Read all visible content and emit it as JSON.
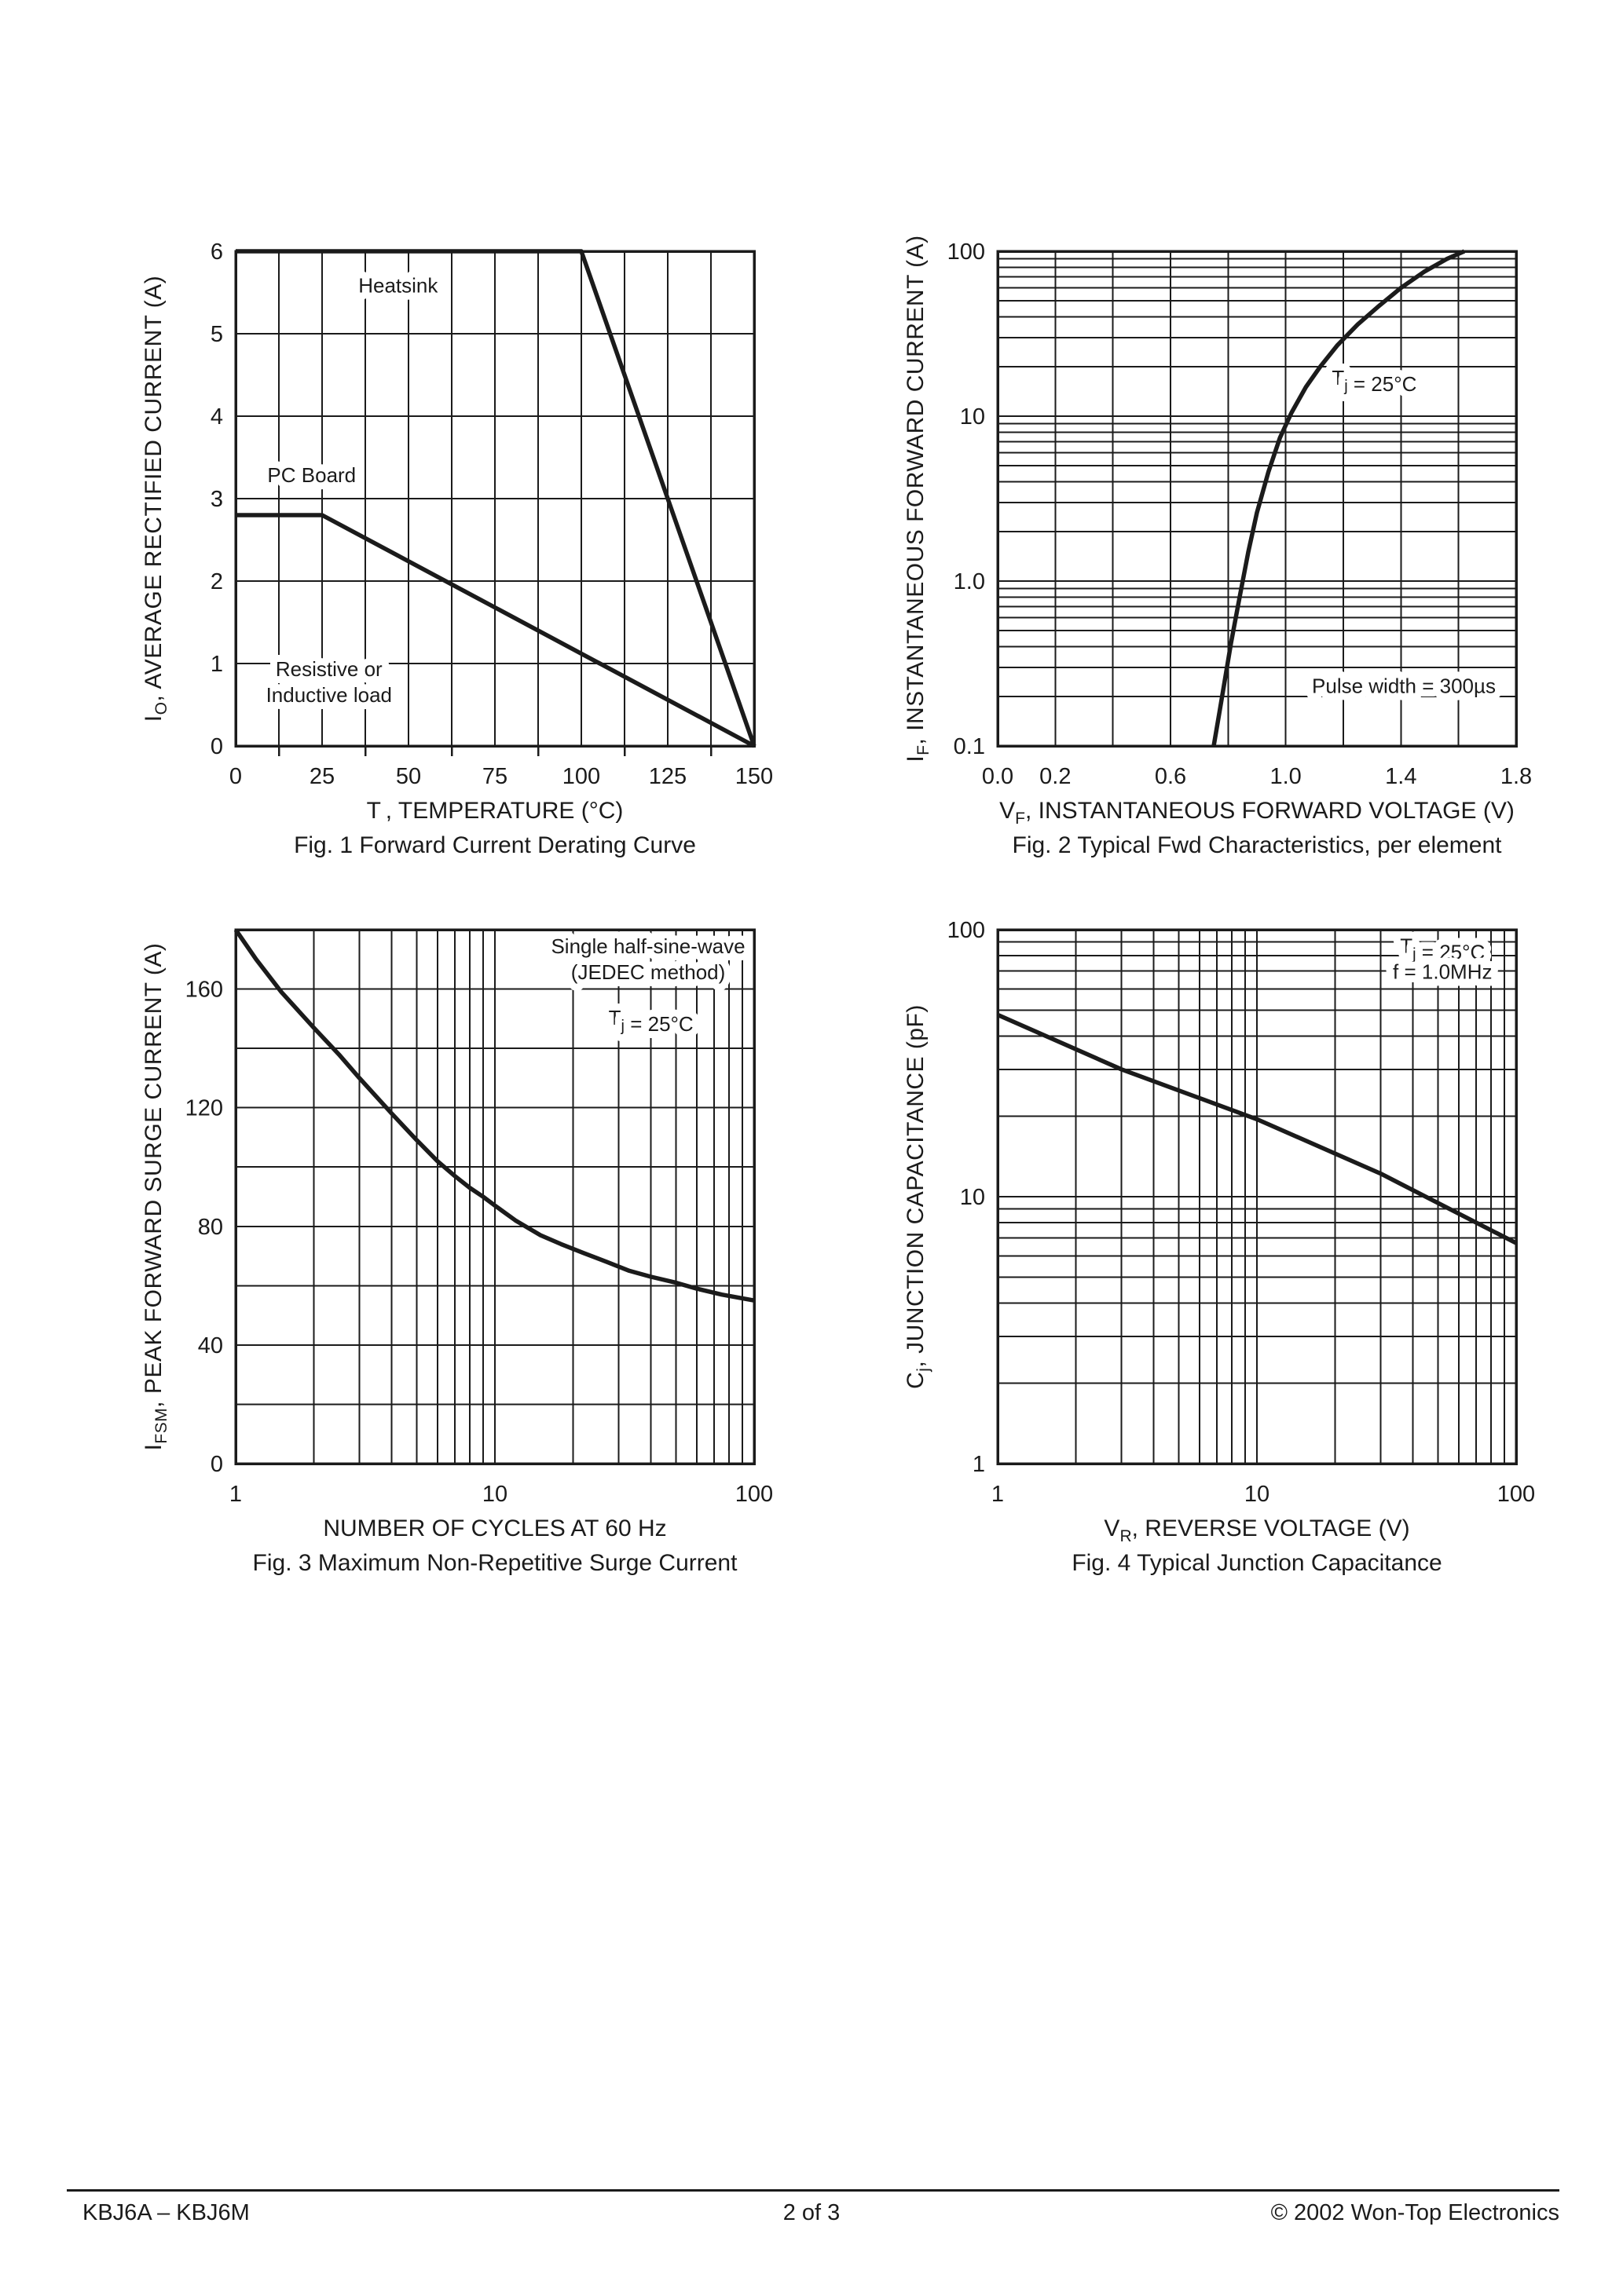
{
  "colors": {
    "ink": "#1b1b1b",
    "background": "#ffffff"
  },
  "footer": {
    "left": "KBJ6A – KBJ6M",
    "center": "2 of 3",
    "right": "© 2002 Won-Top Electronics"
  },
  "chart_data": [
    {
      "id": "fig1",
      "type": "line",
      "caption": "Fig. 1  Forward Current Derating Curve",
      "xlabel": {
        "pre": "T",
        "sub": "  ",
        "post": ", TEMPERATURE (°C)"
      },
      "ylabel": {
        "pre": "I",
        "sub": "O",
        "post": ", AVERAGE RECTIFIED CURRENT (A)"
      },
      "x_axis": {
        "scale": "linear",
        "min": 0,
        "max": 150,
        "grid_step": 12.5,
        "outward_minor_ticks": true,
        "ticks": [
          {
            "v": 0,
            "label": "0"
          },
          {
            "v": 25,
            "label": "25"
          },
          {
            "v": 50,
            "label": "50"
          },
          {
            "v": 75,
            "label": "75"
          },
          {
            "v": 100,
            "label": "100"
          },
          {
            "v": 125,
            "label": "125"
          },
          {
            "v": 150,
            "label": "150"
          }
        ]
      },
      "y_axis": {
        "scale": "linear",
        "min": 0,
        "max": 6,
        "grid_step": 1,
        "ticks": [
          {
            "v": 0,
            "label": "0"
          },
          {
            "v": 1,
            "label": "1"
          },
          {
            "v": 2,
            "label": "2"
          },
          {
            "v": 3,
            "label": "3"
          },
          {
            "v": 4,
            "label": "4"
          },
          {
            "v": 5,
            "label": "5"
          },
          {
            "v": 6,
            "label": "6"
          }
        ]
      },
      "series": [
        {
          "name": "Heatsink",
          "points": [
            [
              0,
              6
            ],
            [
              100,
              6
            ],
            [
              150,
              0
            ]
          ]
        },
        {
          "name": "PC Board",
          "points": [
            [
              0,
              2.8
            ],
            [
              25,
              2.8
            ],
            [
              150,
              0
            ]
          ]
        }
      ],
      "annotations": [
        {
          "x": 47,
          "y": 5.5,
          "anchor": "middle",
          "lines": [
            [
              {
                "t": "Heatsink"
              }
            ]
          ]
        },
        {
          "x": 22,
          "y": 3.2,
          "anchor": "middle",
          "lines": [
            [
              {
                "t": "PC Board"
              }
            ]
          ]
        },
        {
          "x": 27,
          "y": 0.85,
          "anchor": "middle",
          "lines": [
            [
              {
                "t": "Resistive or"
              }
            ],
            [
              {
                "t": "Inductive load"
              }
            ]
          ]
        }
      ]
    },
    {
      "id": "fig2",
      "type": "line",
      "caption": "Fig. 2  Typical Fwd Characteristics, per element",
      "xlabel": {
        "pre": "V",
        "sub": "F",
        "post": ", INSTANTANEOUS FORWARD VOLTAGE (V)"
      },
      "ylabel": {
        "pre": "I",
        "sub": "F",
        "post": ", INSTANTANEOUS FORWARD CURRENT (A)"
      },
      "x_axis": {
        "scale": "linear",
        "min": 0,
        "max": 1.8,
        "grid_step": 0.2,
        "ticks": [
          {
            "v": 0,
            "label": "0.0"
          },
          {
            "v": 0.2,
            "label": "0.2"
          },
          {
            "v": 0.6,
            "label": "0.6"
          },
          {
            "v": 1.0,
            "label": "1.0"
          },
          {
            "v": 1.4,
            "label": "1.4"
          },
          {
            "v": 1.8,
            "label": "1.8"
          }
        ]
      },
      "y_axis": {
        "scale": "log",
        "min": 0.1,
        "max": 100,
        "ticks": [
          {
            "v": 0.1,
            "label": "0.1"
          },
          {
            "v": 1,
            "label": "1.0"
          },
          {
            "v": 10,
            "label": "10"
          },
          {
            "v": 100,
            "label": "100"
          }
        ]
      },
      "series": [
        {
          "name": "Tj = 25°C, Pulse width = 300µs",
          "points": [
            [
              0.75,
              0.1
            ],
            [
              0.77,
              0.16
            ],
            [
              0.79,
              0.26
            ],
            [
              0.81,
              0.42
            ],
            [
              0.84,
              0.8
            ],
            [
              0.87,
              1.5
            ],
            [
              0.9,
              2.6
            ],
            [
              0.94,
              4.6
            ],
            [
              0.98,
              7.4
            ],
            [
              1.02,
              10.5
            ],
            [
              1.07,
              15
            ],
            [
              1.12,
              20
            ],
            [
              1.18,
              27
            ],
            [
              1.25,
              36
            ],
            [
              1.32,
              46
            ],
            [
              1.4,
              60
            ],
            [
              1.48,
              75
            ],
            [
              1.56,
              90
            ],
            [
              1.62,
              100
            ]
          ]
        }
      ],
      "annotations": [
        {
          "x": 1.16,
          "y": 15.5,
          "anchor": "start",
          "lines": [
            [
              {
                "t": "T"
              },
              {
                "t": "j",
                "sub": true
              },
              {
                "t": " = 25°C"
              }
            ]
          ]
        },
        {
          "x": 1.41,
          "y": 0.21,
          "anchor": "middle",
          "lines": [
            [
              {
                "t": "Pulse width = 300µs"
              }
            ]
          ]
        }
      ]
    },
    {
      "id": "fig3",
      "type": "line",
      "caption": "Fig. 3  Maximum Non-Repetitive Surge Current",
      "xlabel": {
        "pre": "",
        "sub": "",
        "post": "NUMBER OF CYCLES AT 60 Hz"
      },
      "ylabel": {
        "pre": "I",
        "sub": "FSM",
        "post": ", PEAK FORWARD SURGE CURRENT (A)"
      },
      "x_axis": {
        "scale": "log",
        "min": 1,
        "max": 100,
        "ticks": [
          {
            "v": 1,
            "label": "1"
          },
          {
            "v": 10,
            "label": "10"
          },
          {
            "v": 100,
            "label": "100"
          }
        ]
      },
      "y_axis": {
        "scale": "linear",
        "min": 0,
        "max": 180,
        "grid_step": 20,
        "ticks": [
          {
            "v": 0,
            "label": "0"
          },
          {
            "v": 40,
            "label": "40"
          },
          {
            "v": 80,
            "label": "80"
          },
          {
            "v": 120,
            "label": "120"
          },
          {
            "v": 160,
            "label": "160"
          }
        ]
      },
      "series": [
        {
          "name": "Single half-sine-wave (JEDEC method), Tj = 25°C",
          "points": [
            [
              1,
              180
            ],
            [
              1.2,
              170
            ],
            [
              1.5,
              159
            ],
            [
              2,
              147
            ],
            [
              2.5,
              138
            ],
            [
              3,
              130
            ],
            [
              4,
              118
            ],
            [
              5,
              109
            ],
            [
              6,
              102
            ],
            [
              7,
              97
            ],
            [
              8,
              93
            ],
            [
              9,
              90
            ],
            [
              10,
              87
            ],
            [
              12,
              82
            ],
            [
              15,
              77
            ],
            [
              18,
              74
            ],
            [
              22,
              71
            ],
            [
              27,
              68
            ],
            [
              33,
              65
            ],
            [
              40,
              63
            ],
            [
              50,
              61
            ],
            [
              60,
              59
            ],
            [
              75,
              57
            ],
            [
              100,
              55
            ]
          ]
        }
      ],
      "annotations": [
        {
          "x": 39,
          "y": 172,
          "anchor": "middle",
          "lines": [
            [
              {
                "t": "Single half-sine-wave"
              }
            ],
            [
              {
                "t": "(JEDEC method)"
              }
            ]
          ]
        },
        {
          "x": 40,
          "y": 148,
          "anchor": "middle",
          "lines": [
            [
              {
                "t": "T"
              },
              {
                "t": "j",
                "sub": true
              },
              {
                "t": " = 25°C"
              }
            ]
          ]
        }
      ]
    },
    {
      "id": "fig4",
      "type": "line",
      "caption": "Fig. 4  Typical Junction Capacitance",
      "xlabel": {
        "pre": "V",
        "sub": "R",
        "post": ", REVERSE VOLTAGE (V)"
      },
      "ylabel": {
        "pre": "C",
        "sub": "j",
        "post": ", JUNCTION CAPACITANCE (pF)"
      },
      "x_axis": {
        "scale": "log",
        "min": 1,
        "max": 100,
        "ticks": [
          {
            "v": 1,
            "label": "1"
          },
          {
            "v": 10,
            "label": "10"
          },
          {
            "v": 100,
            "label": "100"
          }
        ]
      },
      "y_axis": {
        "scale": "log",
        "min": 1,
        "max": 100,
        "ticks": [
          {
            "v": 1,
            "label": "1"
          },
          {
            "v": 10,
            "label": "10"
          },
          {
            "v": 100,
            "label": "100"
          }
        ]
      },
      "series": [
        {
          "name": "Tj = 25°C, f = 1.0MHz",
          "points": [
            [
              1,
              48
            ],
            [
              3,
              30
            ],
            [
              10,
              19.5
            ],
            [
              30,
              12.2
            ],
            [
              100,
              6.7
            ]
          ]
        }
      ],
      "annotations": [
        {
          "x": 52,
          "y": 82,
          "anchor": "middle",
          "lines": [
            [
              {
                "t": "T"
              },
              {
                "t": "j",
                "sub": true
              },
              {
                "t": " = 25°C"
              }
            ],
            [
              {
                "t": "f = 1.0MHz"
              }
            ]
          ]
        }
      ]
    }
  ]
}
